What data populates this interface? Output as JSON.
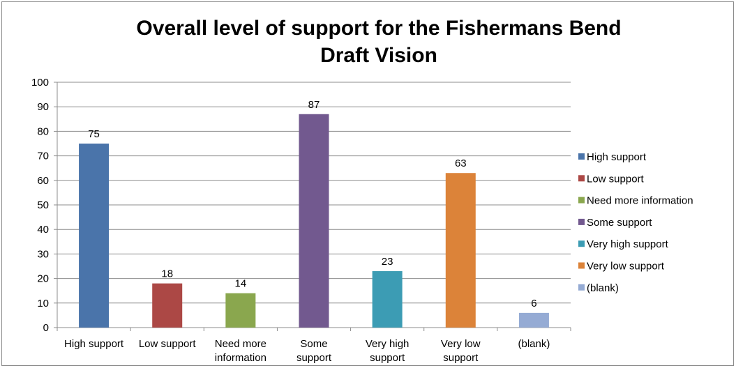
{
  "chart_data": {
    "type": "bar",
    "title_lines": [
      "Overall level of support for the Fishermans Bend",
      "Draft Vision"
    ],
    "categories": [
      "High support",
      "Low support",
      "Need more information",
      "Some support",
      "Very high support",
      "Very low support",
      "(blank)"
    ],
    "category_label_lines": [
      [
        "High support"
      ],
      [
        "Low support"
      ],
      [
        "Need more",
        "information"
      ],
      [
        "Some",
        "support"
      ],
      [
        "Very high",
        "support"
      ],
      [
        "Very low",
        "support"
      ],
      [
        "(blank)"
      ]
    ],
    "values": [
      75,
      18,
      14,
      87,
      23,
      63,
      6
    ],
    "colors": [
      "#4a74aa",
      "#ac4845",
      "#8aa74e",
      "#72598f",
      "#3c9cb4",
      "#dc8339",
      "#95abd4"
    ],
    "ylim": [
      0,
      100
    ],
    "yticks": [
      0,
      10,
      20,
      30,
      40,
      50,
      60,
      70,
      80,
      90,
      100
    ],
    "grid": true,
    "data_labels": true,
    "legend": {
      "placement": "right",
      "entries": [
        "High support",
        "Low support",
        "Need more information",
        "Some support",
        "Very high support",
        "Very low support",
        "(blank)"
      ]
    },
    "xlabel": "",
    "ylabel": ""
  }
}
